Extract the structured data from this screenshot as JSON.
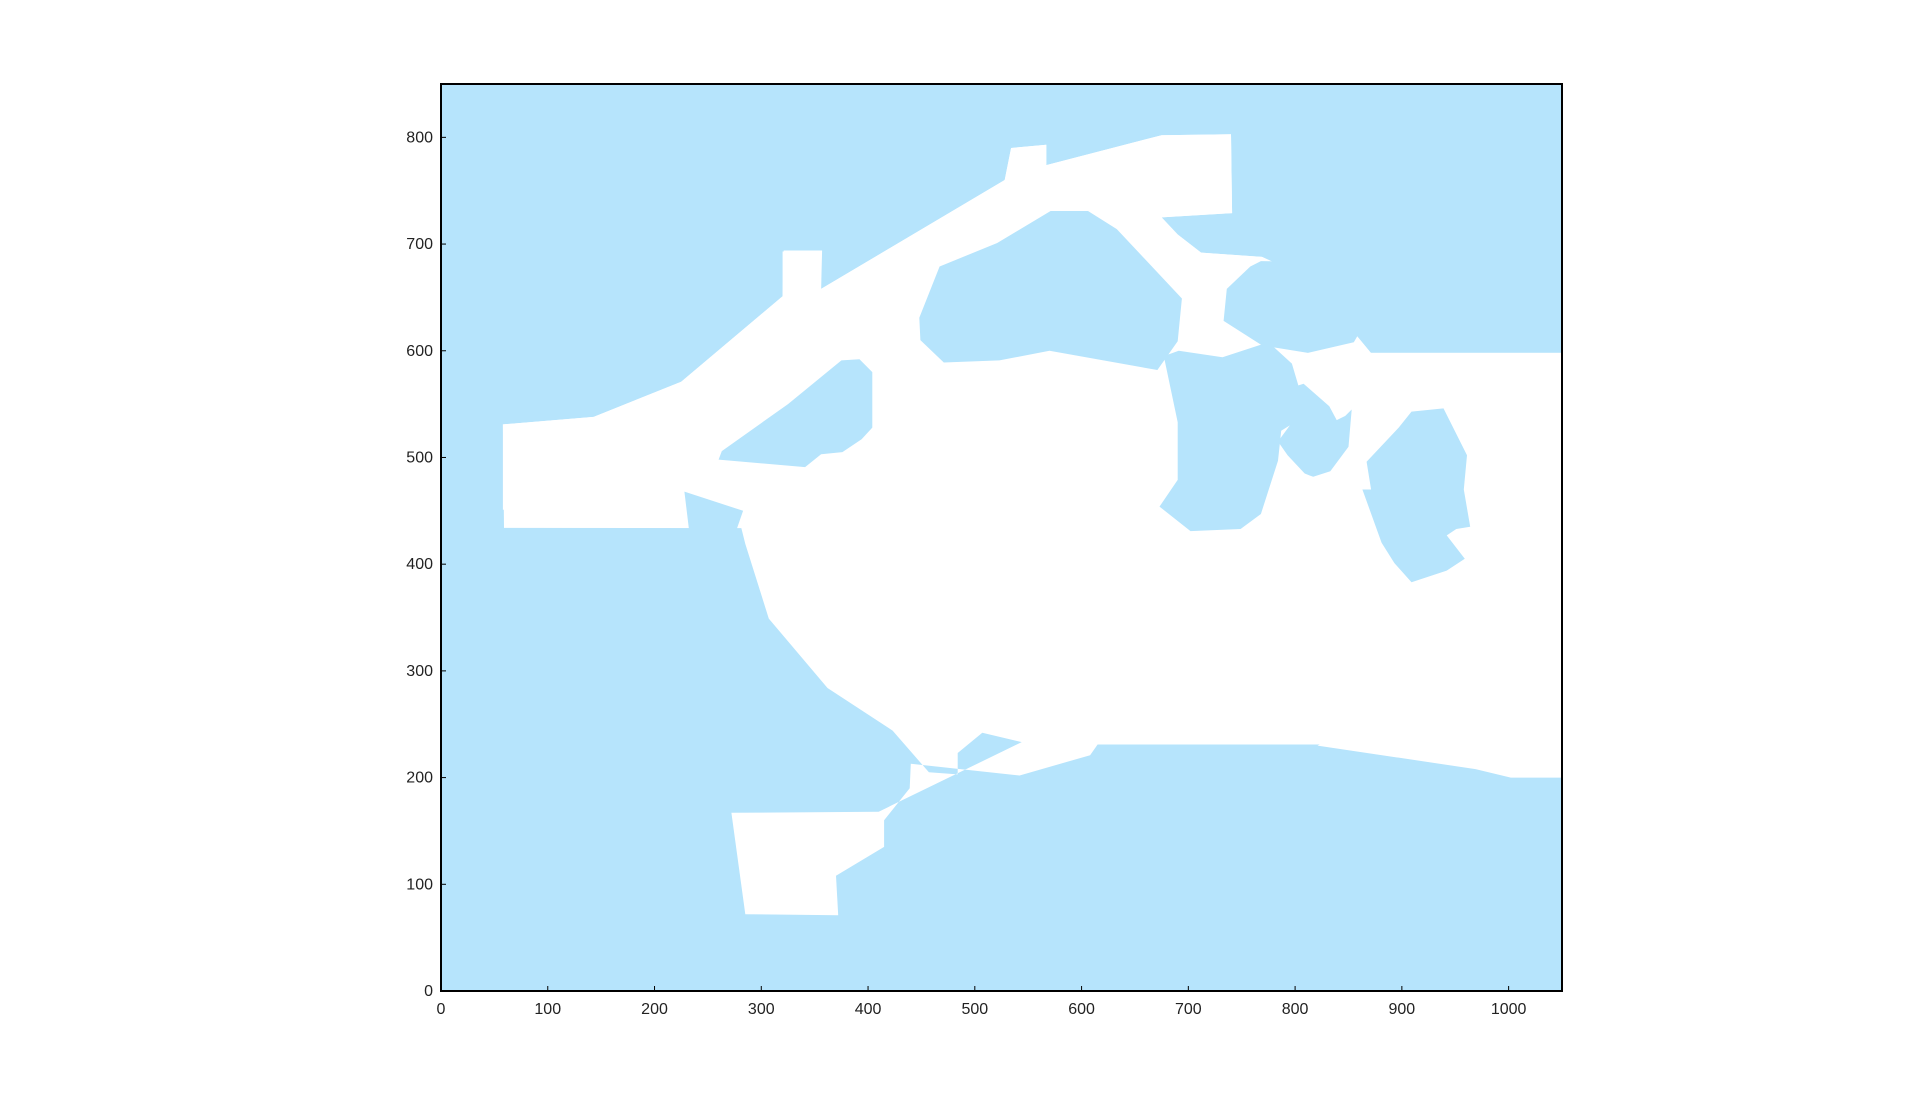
{
  "colors": {
    "map_fill": "#b6e4fc",
    "corridor_fill": "#ffffff",
    "frame_stroke": "#000000",
    "page_background": "#ffffff"
  },
  "chart_data": {
    "type": "map",
    "title": "",
    "xlabel": "",
    "ylabel": "",
    "xlim": [
      0,
      1050
    ],
    "ylim": [
      0,
      850
    ],
    "x_ticks": [
      0,
      100,
      200,
      300,
      400,
      500,
      600,
      700,
      800,
      900,
      1000
    ],
    "y_ticks": [
      0,
      100,
      200,
      300,
      400,
      500,
      600,
      700,
      800
    ],
    "x_tick_labels": [
      "0",
      "100",
      "200",
      "300",
      "400",
      "500",
      "600",
      "700",
      "800",
      "900",
      "1000"
    ],
    "y_tick_labels": [
      "0",
      "100",
      "200",
      "300",
      "400",
      "500",
      "600",
      "700",
      "800"
    ],
    "grid": false,
    "legend": "none",
    "free_space": [
      [
        [
          58,
          451
        ],
        [
          58,
          531
        ],
        [
          143,
          538
        ],
        [
          225,
          571
        ],
        [
          320,
          651
        ],
        [
          321,
          694
        ],
        [
          357,
          694
        ],
        [
          356,
          658
        ],
        [
          528,
          760
        ],
        [
          534,
          790
        ],
        [
          567,
          793
        ],
        [
          567,
          774
        ],
        [
          675,
          802
        ],
        [
          740,
          803
        ],
        [
          741,
          729
        ],
        [
          675,
          725
        ],
        [
          690,
          709
        ],
        [
          712,
          692
        ],
        [
          769,
          688
        ],
        [
          806,
          671
        ],
        [
          828,
          650
        ],
        [
          871,
          598
        ],
        [
          1072,
          598
        ],
        [
          1100,
          574
        ],
        [
          1104,
          567
        ],
        [
          1118,
          543
        ],
        [
          1118,
          478
        ],
        [
          1060,
          433
        ],
        [
          1086,
          375
        ],
        [
          1115,
          291
        ],
        [
          1116,
          301
        ],
        [
          1114,
          297
        ],
        [
          1115,
          200
        ],
        [
          1002,
          200
        ],
        [
          969,
          208
        ],
        [
          821,
          230
        ],
        [
          823,
          231
        ],
        [
          615,
          231
        ],
        [
          608,
          221
        ],
        [
          542,
          202
        ],
        [
          440,
          213
        ],
        [
          439,
          190
        ],
        [
          415,
          160
        ],
        [
          415,
          135
        ],
        [
          370,
          108
        ],
        [
          372,
          71
        ],
        [
          285,
          72
        ],
        [
          272,
          167
        ],
        [
          410,
          168
        ],
        [
          568,
          245
        ],
        [
          566,
          251
        ],
        [
          585,
          238
        ],
        [
          549,
          232
        ],
        [
          507,
          242
        ],
        [
          484,
          223
        ],
        [
          484,
          203
        ],
        [
          457,
          205
        ],
        [
          423,
          244
        ],
        [
          362,
          284
        ],
        [
          307,
          349
        ],
        [
          285,
          419
        ],
        [
          271,
          475
        ],
        [
          205,
          530
        ],
        [
          201,
          462
        ]
      ]
    ],
    "obstacles": [
      [
        [
          59,
          434
        ],
        [
          58,
          531
        ],
        [
          143,
          538
        ],
        [
          225,
          571
        ],
        [
          320,
          651
        ],
        [
          320,
          693
        ],
        [
          356,
          693
        ],
        [
          356,
          658
        ],
        [
          528,
          760
        ],
        [
          534,
          790
        ],
        [
          567,
          793
        ],
        [
          567,
          774
        ],
        [
          675,
          802
        ],
        [
          740,
          803
        ],
        [
          741,
          729
        ],
        [
          675,
          725
        ],
        [
          690,
          709
        ],
        [
          712,
          692
        ],
        [
          769,
          688
        ],
        [
          806,
          671
        ],
        [
          828,
          650
        ],
        [
          871,
          598
        ],
        [
          1081,
          598
        ],
        [
          1088,
          539
        ],
        [
          1084,
          470
        ],
        [
          1061,
          433
        ]
      ],
      [
        [
          260,
          498
        ],
        [
          263,
          506
        ],
        [
          325,
          550
        ],
        [
          375,
          591
        ],
        [
          392,
          592
        ],
        [
          404,
          580
        ],
        [
          404,
          528
        ],
        [
          394,
          517
        ],
        [
          376,
          505
        ],
        [
          356,
          503
        ],
        [
          341,
          491
        ]
      ],
      [
        [
          228,
          468
        ],
        [
          238,
          385
        ],
        [
          260,
          370
        ],
        [
          295,
          360
        ],
        [
          267,
          404
        ],
        [
          283,
          450
        ]
      ],
      [
        [
          448,
          631
        ],
        [
          449,
          610
        ],
        [
          471,
          589
        ],
        [
          523,
          591
        ],
        [
          570,
          600
        ],
        [
          671,
          582
        ],
        [
          690,
          609
        ],
        [
          694,
          649
        ],
        [
          633,
          714
        ],
        [
          606,
          731
        ],
        [
          571,
          731
        ],
        [
          521,
          701
        ],
        [
          467,
          679
        ]
      ],
      [
        [
          733,
          628
        ],
        [
          736,
          658
        ],
        [
          758,
          679
        ],
        [
          768,
          684
        ],
        [
          831,
          683
        ],
        [
          845,
          673
        ],
        [
          860,
          648
        ],
        [
          866,
          627
        ],
        [
          855,
          608
        ],
        [
          812,
          598
        ],
        [
          769,
          605
        ]
      ],
      [
        [
          677,
          595
        ],
        [
          691,
          600
        ],
        [
          732,
          594
        ],
        [
          775,
          608
        ],
        [
          797,
          588
        ],
        [
          805,
          561
        ],
        [
          803,
          535
        ],
        [
          787,
          525
        ],
        [
          784,
          497
        ],
        [
          768,
          447
        ],
        [
          749,
          433
        ],
        [
          702,
          431
        ],
        [
          673,
          454
        ],
        [
          690,
          479
        ],
        [
          690,
          533
        ]
      ],
      [
        [
          784,
          515
        ],
        [
          793,
          502
        ],
        [
          809,
          485
        ],
        [
          814,
          483
        ],
        [
          817,
          482
        ],
        [
          833,
          487
        ],
        [
          850,
          510
        ],
        [
          853,
          545
        ],
        [
          847,
          539
        ],
        [
          839,
          535
        ],
        [
          832,
          548
        ],
        [
          808,
          569
        ],
        [
          795,
          565
        ],
        [
          798,
          549
        ],
        [
          795,
          530
        ]
      ],
      [
        [
          867,
          496
        ],
        [
          897,
          528
        ],
        [
          909,
          543
        ],
        [
          939,
          546
        ],
        [
          961,
          502
        ],
        [
          958,
          470
        ],
        [
          964,
          435
        ],
        [
          951,
          433
        ],
        [
          912,
          407
        ],
        [
          898,
          398
        ],
        [
          891,
          406
        ],
        [
          877,
          434
        ]
      ],
      [
        [
          863,
          470
        ],
        [
          896,
          470
        ],
        [
          908,
          471
        ],
        [
          959,
          405
        ],
        [
          942,
          394
        ],
        [
          909,
          383
        ],
        [
          893,
          401
        ],
        [
          881,
          420
        ]
      ]
    ]
  }
}
